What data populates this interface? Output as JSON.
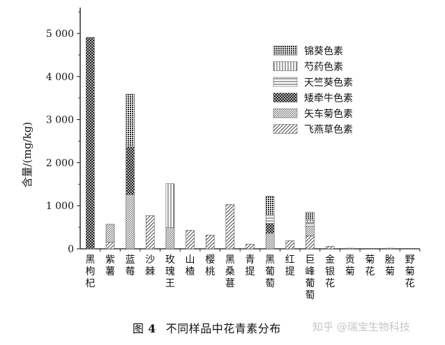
{
  "chart_data": {
    "type": "bar",
    "stacked": true,
    "ylabel": "含量/(mg/kg)",
    "ylim": [
      0,
      5600
    ],
    "yticks": [
      0,
      1000,
      2000,
      3000,
      4000,
      5000
    ],
    "ytick_labels": [
      "0",
      "1 000",
      "2 000",
      "3 000",
      "4 000",
      "5 000"
    ],
    "categories": [
      "黑枸杞",
      "紫薯",
      "蓝莓",
      "沙棘",
      "玫瑰王",
      "山楂",
      "樱桃",
      "黑桑葚",
      "青提",
      "黑葡萄",
      "红提",
      "巨峰葡萄",
      "金银花",
      "贡菊",
      "菊花",
      "胎菊",
      "野菊花"
    ],
    "legend_position": "top-right",
    "series": [
      {
        "name": "锦葵色素",
        "pattern": "grid",
        "values": [
          0,
          0,
          1230,
          0,
          0,
          0,
          0,
          0,
          0,
          450,
          0,
          180,
          0,
          0,
          0,
          0,
          0
        ]
      },
      {
        "name": "芍药色素",
        "pattern": "vertical",
        "values": [
          0,
          0,
          0,
          0,
          1020,
          0,
          0,
          0,
          0,
          0,
          0,
          60,
          0,
          0,
          0,
          0,
          0
        ]
      },
      {
        "name": "天竺葵色素",
        "pattern": "horizontal",
        "values": [
          0,
          0,
          0,
          0,
          0,
          0,
          0,
          0,
          0,
          180,
          0,
          80,
          0,
          0,
          0,
          0,
          0
        ]
      },
      {
        "name": "矮牵牛色素",
        "pattern": "crosshatch",
        "values": [
          4910,
          0,
          1100,
          0,
          0,
          0,
          0,
          0,
          0,
          230,
          0,
          0,
          0,
          0,
          0,
          0,
          0
        ]
      },
      {
        "name": "矢车菊色素",
        "pattern": "dense-diagonal",
        "values": [
          0,
          420,
          1260,
          0,
          490,
          0,
          0,
          0,
          0,
          360,
          0,
          230,
          0,
          0,
          0,
          0,
          0
        ]
      },
      {
        "name": "飞燕草色素",
        "pattern": "diagonal",
        "values": [
          0,
          150,
          0,
          770,
          0,
          430,
          320,
          1030,
          110,
          0,
          190,
          300,
          60,
          15,
          10,
          15,
          10
        ]
      }
    ]
  },
  "caption": {
    "prefix": "图",
    "number": "4",
    "text": "不同样品中花青素分布"
  },
  "watermark": "知乎 @瑞宝生物科技"
}
